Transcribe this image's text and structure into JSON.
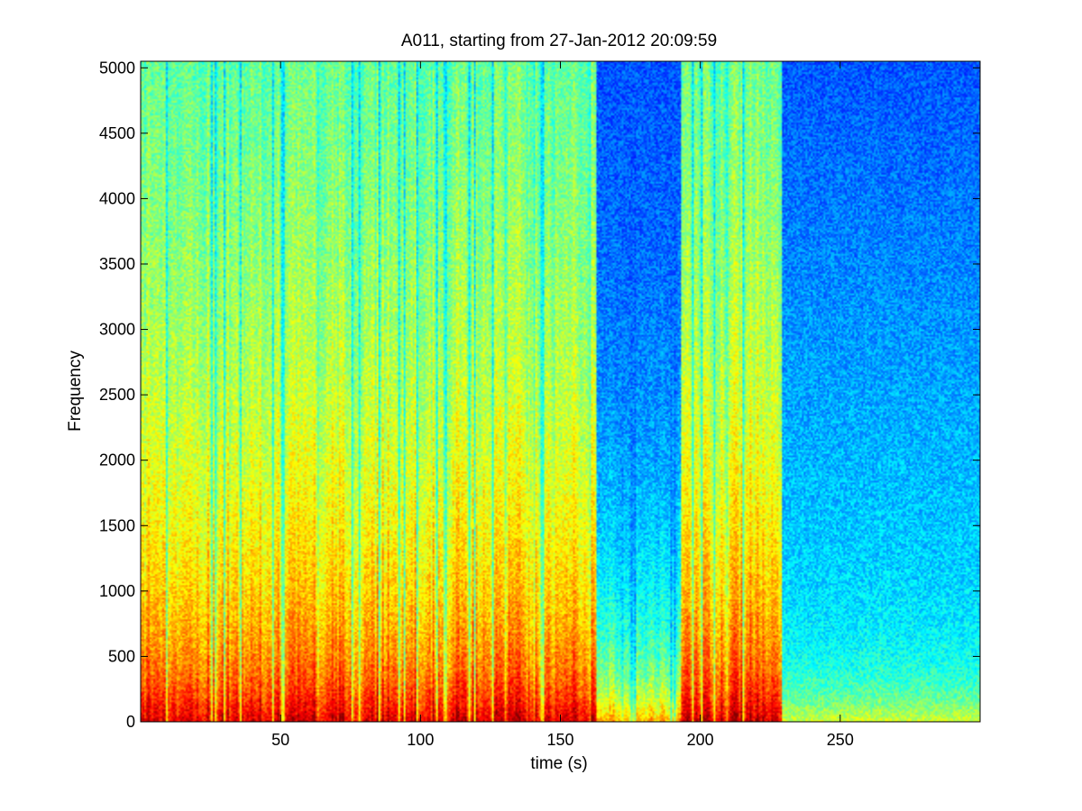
{
  "chart_data": {
    "type": "heatmap",
    "subtype": "spectrogram",
    "title": "A011, starting from 27-Jan-2012 20:09:59",
    "xlabel": "time (s)",
    "ylabel": "Frequency",
    "xlim": [
      0,
      300
    ],
    "ylim": [
      0,
      5050
    ],
    "xticks": [
      50,
      100,
      150,
      200,
      250
    ],
    "yticks": [
      0,
      500,
      1000,
      1500,
      2000,
      2500,
      3000,
      3500,
      4000,
      4500,
      5000
    ],
    "colormap": "jet",
    "grid": false,
    "segments": [
      {
        "t_start": 0,
        "t_end": 163,
        "activity": "high",
        "low_freq_color": "red",
        "high_freq_color": "cyan-blue"
      },
      {
        "t_start": 163,
        "t_end": 193,
        "activity": "medium",
        "low_freq_color": "yellow",
        "high_freq_color": "blue"
      },
      {
        "t_start": 193,
        "t_end": 229,
        "activity": "high",
        "low_freq_color": "red",
        "high_freq_color": "cyan"
      },
      {
        "t_start": 229,
        "t_end": 300,
        "activity": "low",
        "low_freq_color": "yellow-green",
        "high_freq_color": "blue"
      }
    ]
  },
  "colors": {
    "background": "#ffffff",
    "axes": "#000000"
  }
}
